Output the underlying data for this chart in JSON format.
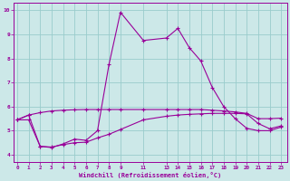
{
  "xlabel": "Windchill (Refroidissement éolien,°C)",
  "bg_color": "#cce8e8",
  "line_color": "#990099",
  "grid_color": "#99cccc",
  "xtick_positions": [
    0,
    1,
    2,
    3,
    4,
    5,
    6,
    7,
    8,
    9,
    11,
    13,
    14,
    15,
    16,
    17,
    18,
    19,
    20,
    21,
    22,
    23
  ],
  "xtick_labels": [
    "0",
    "1",
    "2",
    "3",
    "4",
    "5",
    "6",
    "7",
    "8",
    "9",
    "11",
    "13",
    "14",
    "15",
    "16",
    "17",
    "18",
    "19",
    "20",
    "21",
    "22",
    "23"
  ],
  "yticks": [
    4,
    5,
    6,
    7,
    8,
    9,
    10
  ],
  "xlim": [
    -0.3,
    23.5
  ],
  "ylim": [
    3.7,
    10.3
  ],
  "curve_upper_x": [
    0,
    1,
    2,
    3,
    4,
    5,
    6,
    7,
    8,
    9,
    11,
    13,
    14,
    15,
    16,
    17,
    18,
    19,
    20,
    21,
    22,
    23
  ],
  "curve_upper_y": [
    5.45,
    5.65,
    5.75,
    5.82,
    5.85,
    5.87,
    5.88,
    5.88,
    5.88,
    5.88,
    5.88,
    5.88,
    5.88,
    5.88,
    5.88,
    5.85,
    5.82,
    5.78,
    5.72,
    5.5,
    5.5,
    5.52
  ],
  "curve_main_x": [
    0,
    1,
    2,
    3,
    4,
    5,
    6,
    7,
    8,
    9,
    11,
    13,
    14,
    15,
    16,
    17,
    18,
    19,
    20,
    21,
    22,
    23
  ],
  "curve_main_y": [
    5.45,
    5.65,
    4.35,
    4.3,
    4.45,
    4.65,
    4.6,
    5.0,
    7.75,
    9.92,
    8.75,
    8.85,
    9.25,
    8.45,
    7.9,
    6.8,
    6.0,
    5.5,
    5.1,
    5.0,
    5.0,
    5.15
  ],
  "curve_lower_x": [
    0,
    1,
    2,
    3,
    4,
    5,
    6,
    7,
    8,
    9,
    11,
    13,
    14,
    15,
    16,
    17,
    18,
    19,
    20,
    21,
    22,
    23
  ],
  "curve_lower_y": [
    5.45,
    5.45,
    4.35,
    4.32,
    4.42,
    4.5,
    4.52,
    4.7,
    4.85,
    5.05,
    5.45,
    5.6,
    5.65,
    5.68,
    5.7,
    5.72,
    5.72,
    5.72,
    5.7,
    5.3,
    5.08,
    5.2
  ]
}
